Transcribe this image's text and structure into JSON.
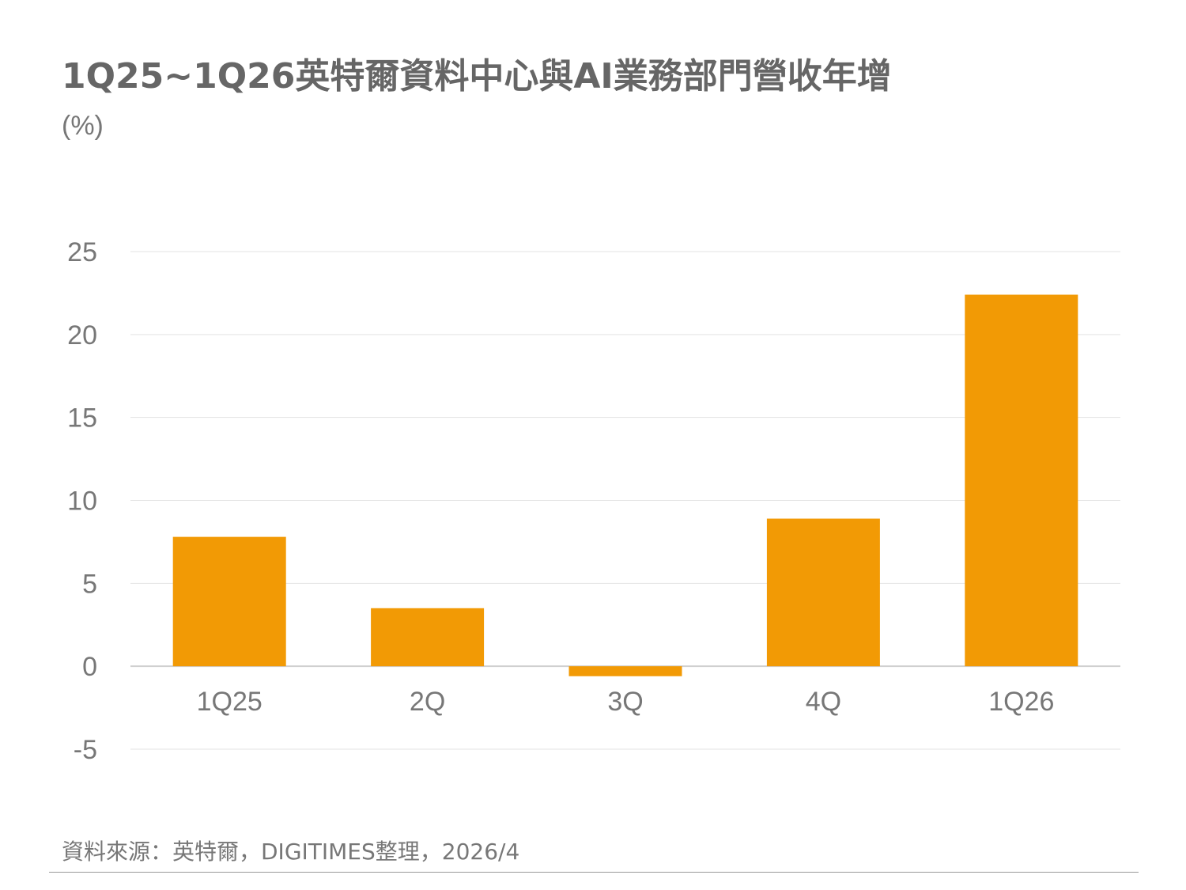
{
  "title": "1Q25~1Q26英特爾資料中心與AI業務部門營收年增",
  "footer": {
    "source": "資料來源：英特爾，DIGITIMES整理，2026/4"
  },
  "colors": {
    "bar": "#F29A05",
    "grid": "#E3E3E3",
    "text": "#666666"
  },
  "chart_data": {
    "type": "bar",
    "title": "1Q25~1Q26英特爾資料中心與AI業務部門營收年增",
    "ylabel": "(%)",
    "xlabel": "",
    "categories": [
      "1Q25",
      "2Q",
      "3Q",
      "4Q",
      "1Q26"
    ],
    "values": [
      7.8,
      3.5,
      -0.6,
      8.9,
      22.4
    ],
    "ylim": [
      -5,
      25
    ],
    "yticks": [
      25,
      20,
      15,
      10,
      5,
      0,
      -5
    ],
    "grid": true,
    "legend": "none"
  }
}
